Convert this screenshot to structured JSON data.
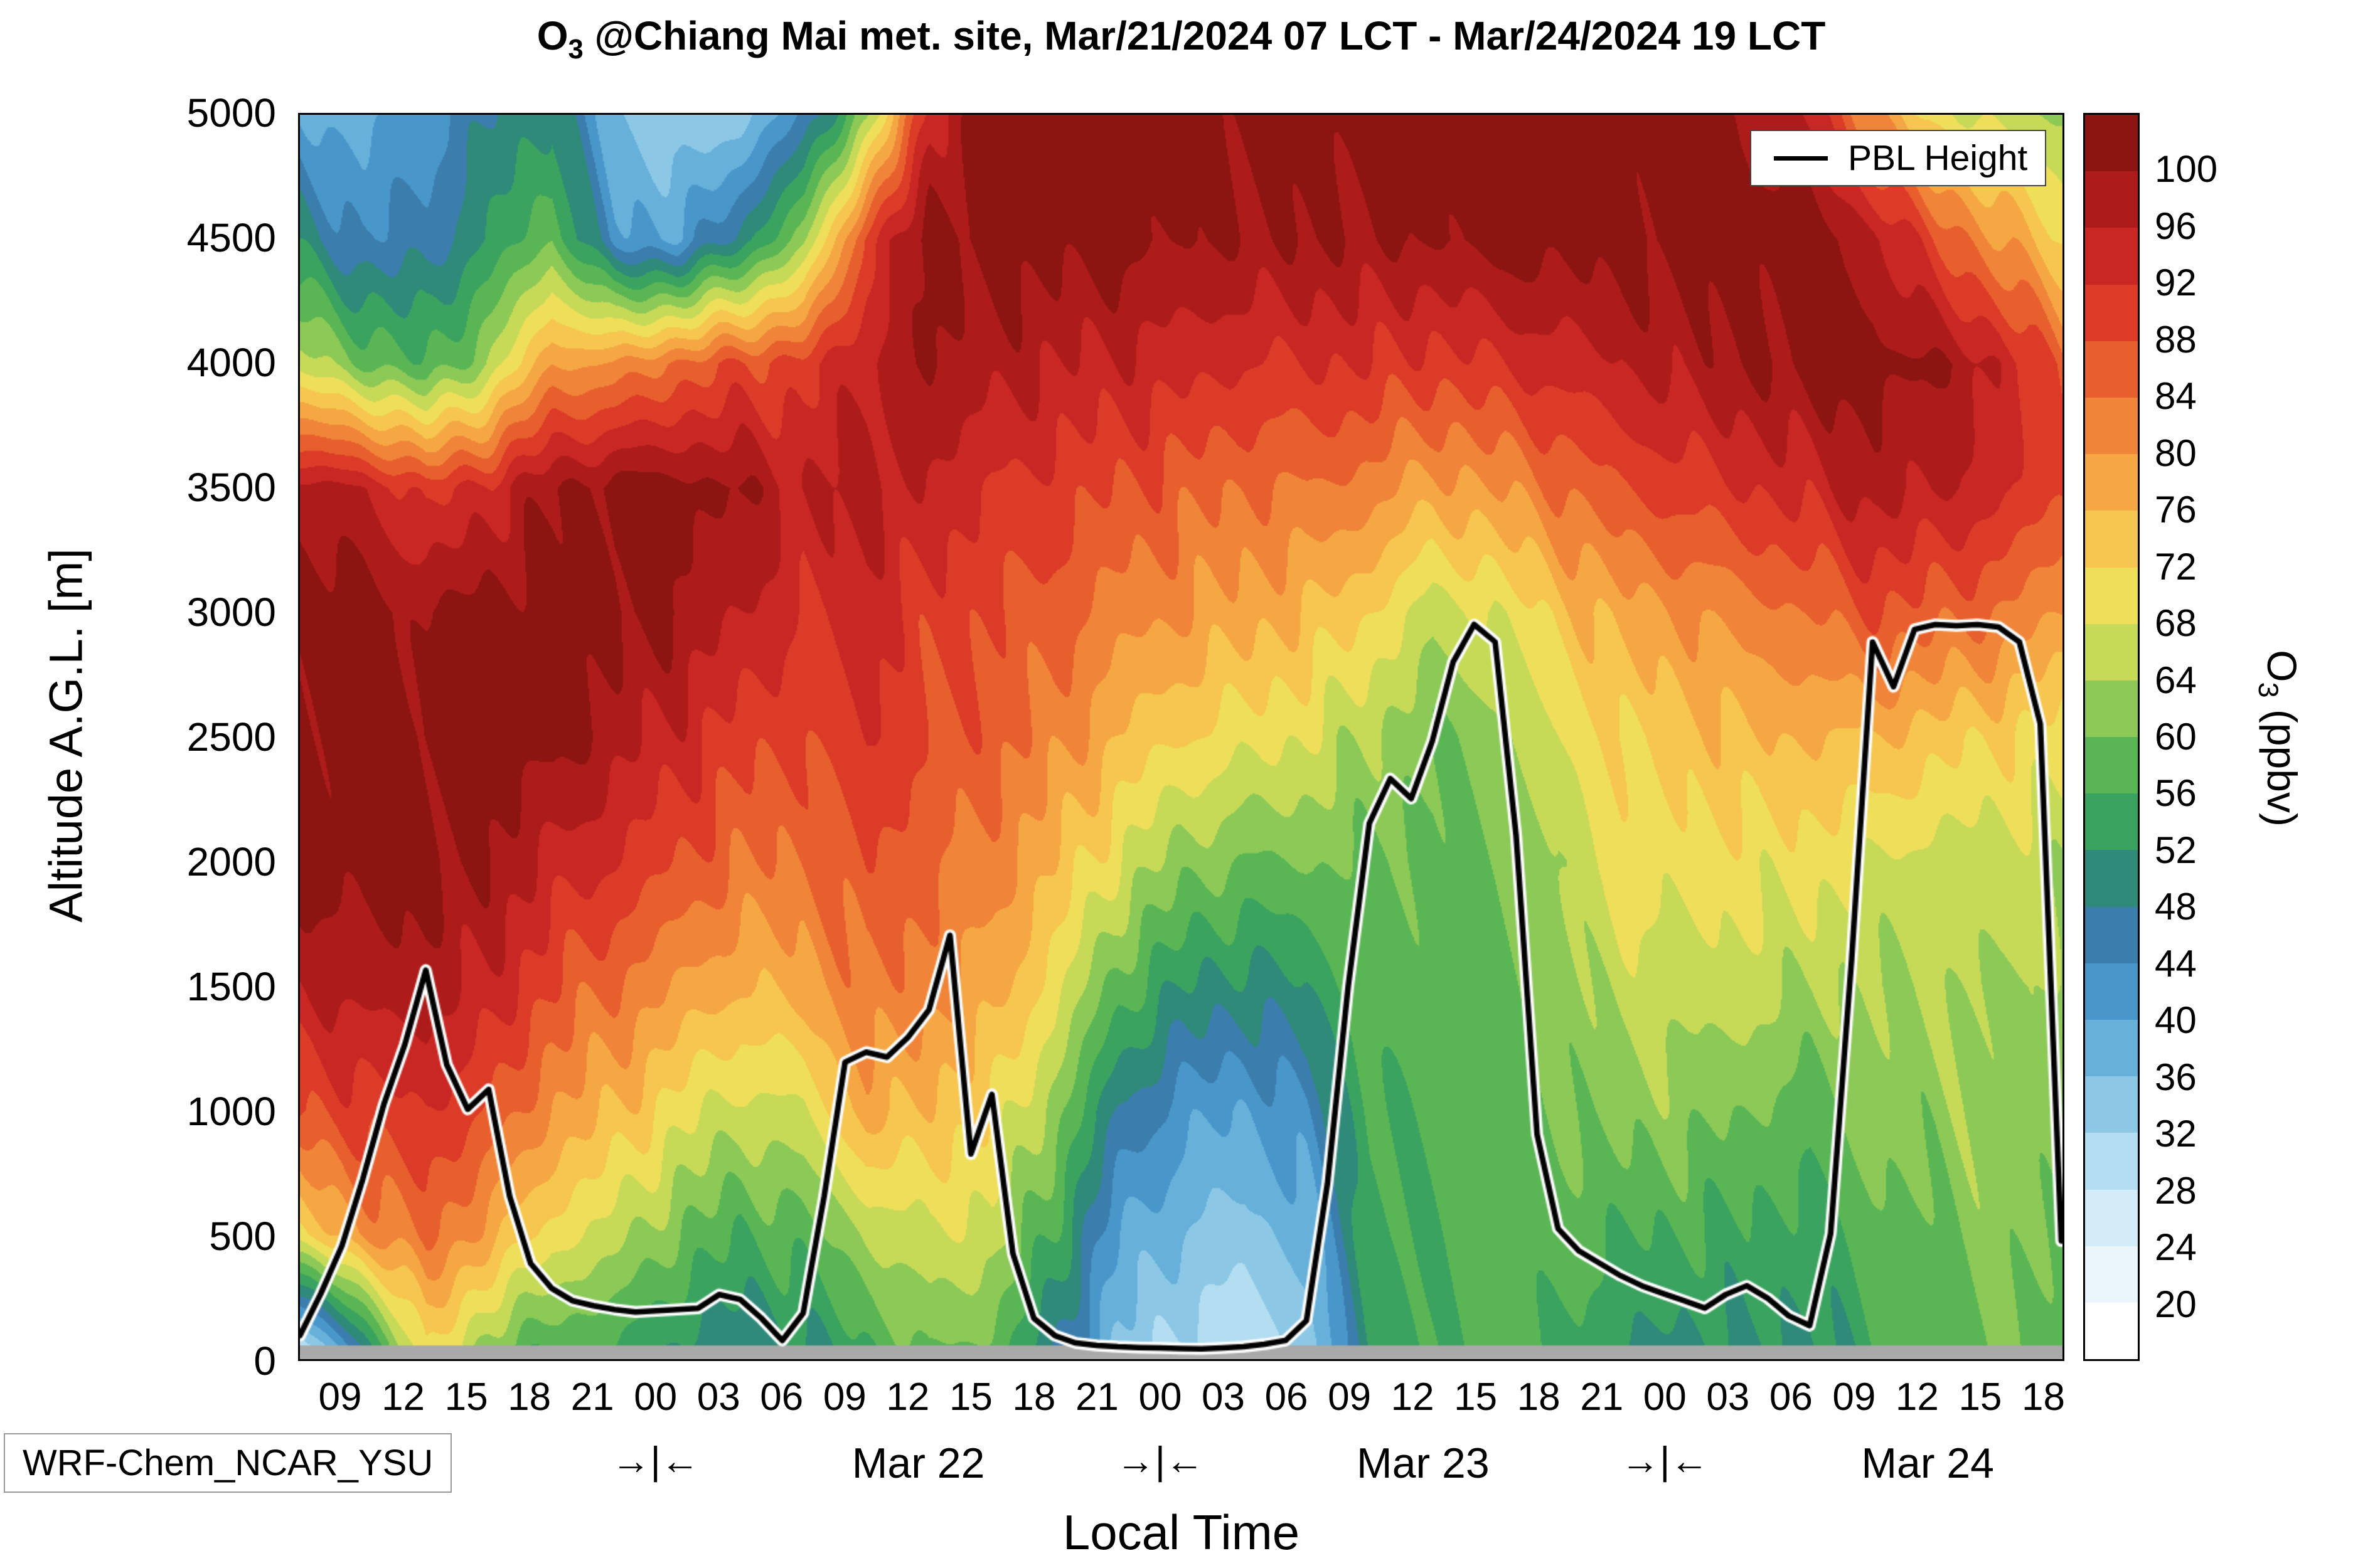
{
  "title": {
    "prefix": "O",
    "sub": "3",
    "rest": " @Chiang Mai met. site, Mar/21/2024 07 LCT - Mar/24/2024 19 LCT"
  },
  "axes": {
    "y_label": "Altitude A.G.L. [m]",
    "x_label": "Local Time",
    "y_ticks": [
      0,
      500,
      1000,
      1500,
      2000,
      2500,
      3000,
      3500,
      4000,
      4500,
      5000
    ]
  },
  "legend": {
    "label": "PBL Height"
  },
  "model_label": "WRF-Chem_NCAR_YSU",
  "colorbar": {
    "label_prefix": "O",
    "label_sub": "3",
    "label_rest": " (ppbv)",
    "tick_values": [
      20,
      24,
      28,
      32,
      36,
      40,
      44,
      48,
      52,
      56,
      60,
      64,
      68,
      72,
      76,
      80,
      84,
      88,
      92,
      96,
      100
    ]
  },
  "annotations": {
    "midnight_marker": "→|←",
    "midnight_hours": [
      24,
      48,
      72
    ],
    "day_labels": [
      {
        "label": "Mar 22",
        "hour": 36.5
      },
      {
        "label": "Mar 23",
        "hour": 60.5
      },
      {
        "label": "Mar 24",
        "hour": 84.5
      }
    ]
  },
  "chart_data": {
    "type": "heatmap",
    "title": "O3 @Chiang Mai met. site, Mar/21/2024 07 LCT - Mar/24/2024 19 LCT",
    "xlabel": "Local Time",
    "ylabel": "Altitude A.G.L. [m]",
    "colorbar_label": "O3 (ppbv)",
    "x_range_hours": [
      7,
      91
    ],
    "x_tick_hours": [
      9,
      12,
      15,
      18,
      21,
      24,
      27,
      30,
      33,
      36,
      39,
      42,
      45,
      48,
      51,
      54,
      57,
      60,
      63,
      66,
      69,
      72,
      75,
      78,
      81,
      84,
      87,
      90
    ],
    "x_tick_labels": [
      "09",
      "12",
      "15",
      "18",
      "21",
      "00",
      "03",
      "06",
      "09",
      "12",
      "15",
      "18",
      "21",
      "00",
      "03",
      "06",
      "09",
      "12",
      "15",
      "18",
      "21",
      "00",
      "03",
      "06",
      "09",
      "12",
      "15",
      "18"
    ],
    "ylim": [
      0,
      5000
    ],
    "levels": [
      20,
      24,
      28,
      32,
      36,
      40,
      44,
      48,
      52,
      56,
      60,
      64,
      68,
      72,
      76,
      80,
      84,
      88,
      92,
      96,
      100
    ],
    "palette": [
      "#ffffff",
      "#eaf6fb",
      "#d3ecf7",
      "#b3ddf0",
      "#8cc8e6",
      "#66b0da",
      "#4997ca",
      "#3b7eae",
      "#2f8a7a",
      "#3aa35f",
      "#5ab654",
      "#8cc957",
      "#c6da58",
      "#eede5a",
      "#f6c64e",
      "#f5a743",
      "#f08438",
      "#e85f2e",
      "#dc3b27",
      "#c92723",
      "#ad1c1b",
      "#8c1511"
    ],
    "surface_band": {
      "height_m": 55,
      "color": "#a9a9a9"
    },
    "grid": {
      "time_hours": [
        7,
        10,
        13,
        16,
        19,
        22,
        25,
        28,
        31,
        34,
        37,
        40,
        43,
        46,
        49,
        52,
        55,
        58,
        61,
        64,
        67,
        70,
        73,
        76,
        79,
        82,
        85,
        88,
        91
      ],
      "altitudes_m": [
        0,
        500,
        1000,
        1500,
        2000,
        2500,
        3000,
        3500,
        4000,
        4500,
        5000
      ],
      "o3_ppbv": [
        [
          24,
          45,
          72,
          60,
          55,
          55,
          50,
          48,
          50,
          55,
          60,
          58,
          48,
          35,
          30,
          28,
          32,
          52,
          56,
          58,
          55,
          52,
          50,
          52,
          50,
          55,
          58,
          60,
          58
        ],
        [
          72,
          80,
          85,
          78,
          70,
          66,
          60,
          56,
          58,
          64,
          68,
          66,
          55,
          40,
          36,
          34,
          38,
          55,
          56,
          58,
          58,
          56,
          56,
          55,
          54,
          58,
          60,
          62,
          60
        ],
        [
          88,
          90,
          92,
          88,
          80,
          76,
          70,
          66,
          68,
          78,
          75,
          72,
          62,
          48,
          42,
          40,
          44,
          56,
          57,
          58,
          60,
          62,
          62,
          60,
          58,
          62,
          62,
          63,
          62
        ],
        [
          96,
          98,
          98,
          95,
          88,
          84,
          80,
          76,
          78,
          84,
          82,
          78,
          70,
          58,
          52,
          50,
          52,
          58,
          58,
          58,
          62,
          66,
          66,
          66,
          64,
          64,
          64,
          64,
          63
        ],
        [
          102,
          102,
          102,
          100,
          95,
          92,
          88,
          84,
          84,
          88,
          85,
          82,
          76,
          68,
          62,
          60,
          60,
          60,
          58,
          60,
          64,
          70,
          70,
          70,
          70,
          68,
          66,
          66,
          65
        ],
        [
          102,
          102,
          102,
          102,
          102,
          98,
          94,
          90,
          88,
          92,
          88,
          86,
          82,
          76,
          72,
          70,
          68,
          64,
          60,
          62,
          68,
          72,
          74,
          76,
          76,
          76,
          74,
          72,
          70
        ],
        [
          102,
          102,
          100,
          102,
          102,
          102,
          100,
          96,
          92,
          94,
          90,
          88,
          86,
          82,
          80,
          78,
          76,
          72,
          66,
          68,
          74,
          78,
          80,
          82,
          84,
          88,
          86,
          84,
          80
        ],
        [
          98,
          96,
          90,
          94,
          100,
          102,
          102,
          100,
          96,
          98,
          95,
          92,
          90,
          88,
          86,
          84,
          84,
          82,
          78,
          80,
          84,
          88,
          90,
          92,
          94,
          98,
          96,
          94,
          88
        ],
        [
          66,
          60,
          56,
          64,
          80,
          80,
          85,
          88,
          90,
          96,
          100,
          98,
          96,
          95,
          94,
          92,
          92,
          92,
          90,
          92,
          94,
          96,
          98,
          100,
          102,
          102,
          100,
          96,
          86
        ],
        [
          50,
          44,
          46,
          52,
          60,
          42,
          40,
          50,
          62,
          90,
          102,
          102,
          102,
          102,
          100,
          100,
          100,
          100,
          100,
          102,
          102,
          102,
          102,
          102,
          102,
          98,
          88,
          80,
          72
        ],
        [
          40,
          38,
          42,
          48,
          52,
          36,
          32,
          34,
          44,
          62,
          95,
          102,
          102,
          102,
          102,
          102,
          102,
          102,
          102,
          102,
          102,
          102,
          102,
          100,
          96,
          80,
          70,
          66,
          64
        ]
      ]
    },
    "pbl_height": {
      "line_color": "#000000",
      "halo_color": "#ffffff",
      "hours": [
        7,
        8,
        9,
        10,
        11,
        12,
        13,
        14,
        15,
        16,
        17,
        18,
        19,
        20,
        21,
        22,
        23,
        24,
        25,
        26,
        27,
        28,
        29,
        30,
        31,
        32,
        33,
        34,
        35,
        36,
        37,
        38,
        39,
        40,
        41,
        42,
        43,
        44,
        45,
        46,
        47,
        48,
        49,
        50,
        51,
        52,
        53,
        54,
        55,
        56,
        57,
        58,
        59,
        60,
        61,
        62,
        63,
        64,
        65,
        66,
        67,
        68,
        69,
        70,
        71,
        72,
        73,
        74,
        75,
        76,
        77,
        78,
        79,
        80,
        81,
        82,
        83,
        84,
        85,
        86,
        87,
        88,
        89,
        90,
        91
      ],
      "heights_m": [
        90,
        260,
        450,
        720,
        1020,
        1260,
        1560,
        1180,
        1000,
        1080,
        650,
        380,
        280,
        230,
        210,
        195,
        185,
        190,
        195,
        200,
        255,
        235,
        160,
        70,
        180,
        650,
        1190,
        1230,
        1210,
        1290,
        1400,
        1700,
        820,
        1060,
        420,
        160,
        90,
        60,
        50,
        45,
        42,
        40,
        38,
        36,
        40,
        45,
        55,
        70,
        150,
        700,
        1500,
        2150,
        2330,
        2250,
        2480,
        2800,
        2950,
        2880,
        2100,
        900,
        520,
        430,
        380,
        330,
        290,
        260,
        230,
        200,
        255,
        290,
        240,
        170,
        130,
        500,
        1600,
        2880,
        2700,
        2930,
        2950,
        2945,
        2950,
        2940,
        2880,
        2550,
        470
      ]
    }
  }
}
